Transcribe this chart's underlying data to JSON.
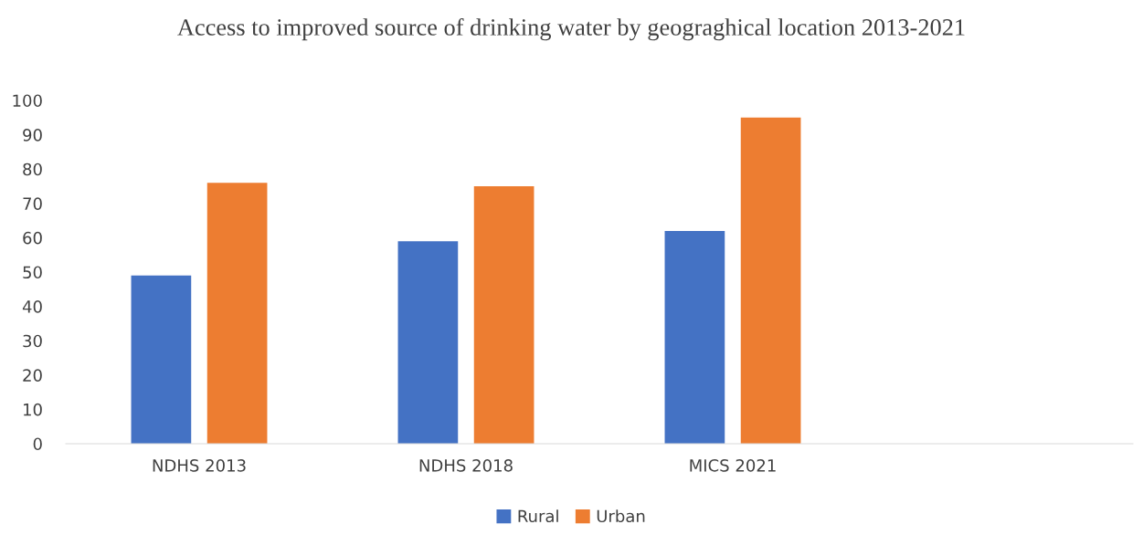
{
  "chart_data": {
    "type": "bar",
    "title": "Access to improved source of drinking water by geograghical location 2013-2021",
    "categories": [
      "NDHS 2013",
      "NDHS 2018",
      "MICS 2021",
      null
    ],
    "series": [
      {
        "name": "Rural",
        "color": "#4472c4",
        "values": [
          49,
          59,
          62,
          null
        ]
      },
      {
        "name": "Urban",
        "color": "#ed7d31",
        "values": [
          76,
          75,
          95,
          null
        ]
      }
    ],
    "ylim": [
      0,
      100
    ],
    "yticks": [
      0,
      10,
      20,
      30,
      40,
      50,
      60,
      70,
      80,
      90,
      100
    ],
    "grid": false,
    "legend": "bottom"
  }
}
